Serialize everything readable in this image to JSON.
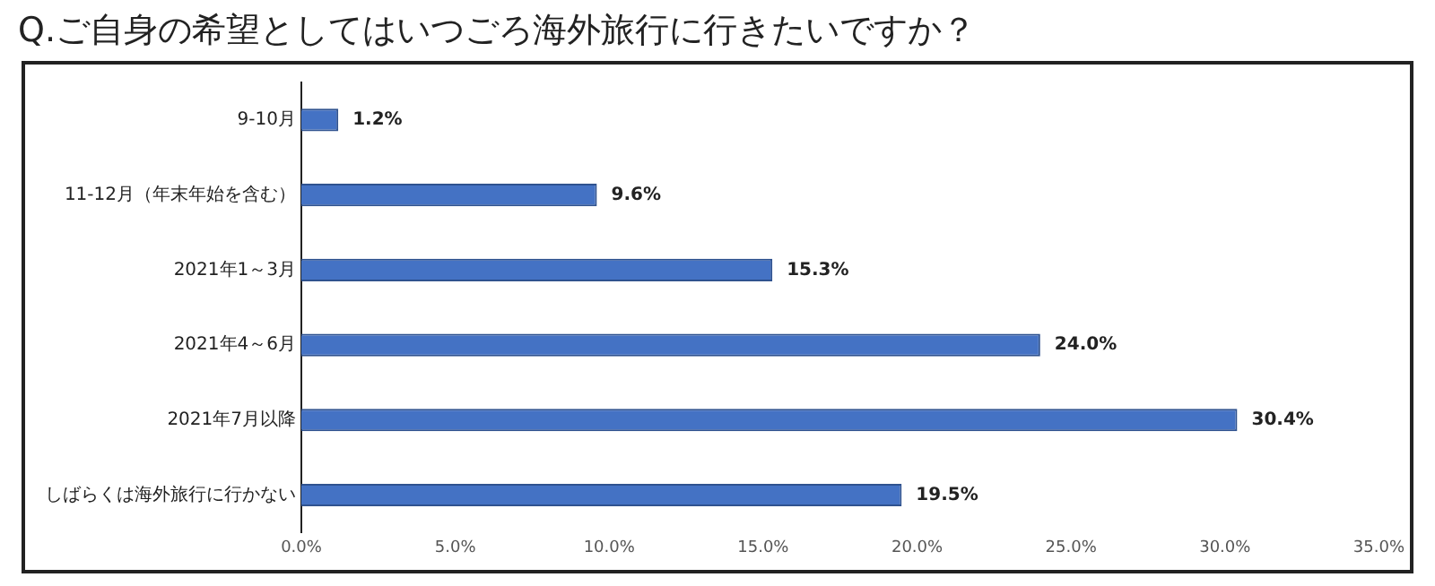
{
  "chart_data": {
    "type": "bar",
    "orientation": "horizontal",
    "title": "Q.ご自身の希望としてはいつごろ海外旅行に行きたいですか？",
    "categories": [
      "9-10月",
      "11-12月（年末年始を含む）",
      "2021年1～3月",
      "2021年4～6月",
      "2021年7月以降",
      "しばらくは海外旅行に行かない"
    ],
    "values": [
      1.2,
      9.6,
      15.3,
      24.0,
      30.4,
      19.5
    ],
    "value_labels": [
      "1.2%",
      "9.6%",
      "15.3%",
      "24.0%",
      "30.4%",
      "19.5%"
    ],
    "color": "#4472c4",
    "xlim": [
      0,
      35
    ],
    "xticks": [
      {
        "value": 0,
        "label": "0.0%"
      },
      {
        "value": 5,
        "label": "5.0%"
      },
      {
        "value": 10,
        "label": "10.0%"
      },
      {
        "value": 15,
        "label": "15.0%"
      },
      {
        "value": 20,
        "label": "20.0%"
      },
      {
        "value": 25,
        "label": "25.0%"
      },
      {
        "value": 30,
        "label": "30.0%"
      },
      {
        "value": 35,
        "label": "35.0%"
      }
    ],
    "grid": false,
    "legend": false
  }
}
